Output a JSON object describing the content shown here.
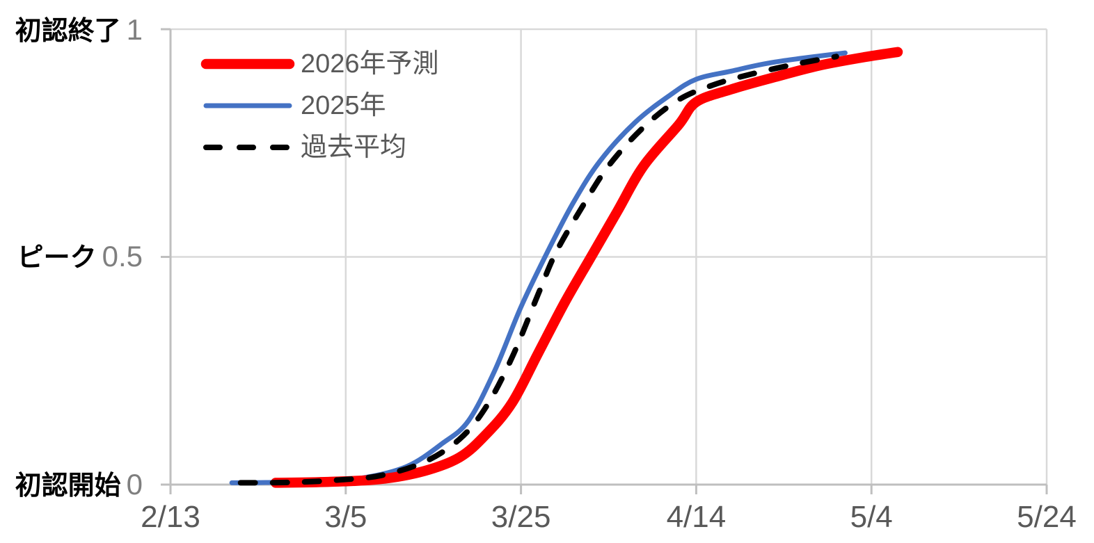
{
  "page": {
    "background": "#FFFFFF"
  },
  "chart_data": {
    "type": "line",
    "title": "",
    "xlabel": "",
    "ylabel": "",
    "x_axis": {
      "ticks": [
        "2/13",
        "3/5",
        "3/25",
        "4/14",
        "5/4",
        "5/24"
      ]
    },
    "y_axis": {
      "range": [
        0,
        1
      ],
      "rows": [
        {
          "label": "初認終了",
          "tick": "1",
          "value": 1
        },
        {
          "label": "ピーク",
          "tick": "0.5",
          "value": 0.5
        },
        {
          "label": "初認開始",
          "tick": "0",
          "value": 0
        }
      ]
    },
    "grid": {
      "vertical_at_ticks": true,
      "horizontal_at": [
        0.5,
        1
      ]
    },
    "legend_position": "top-left-inside",
    "colors": {
      "axis": "#BFBFBF",
      "gridline": "#D9D9D9",
      "tick_text": "#595959",
      "annotation_text": "#000000"
    },
    "series": [
      {
        "id": "2026-forecast",
        "name": "2026年予測",
        "color": "#FF0000",
        "style": "thick-solid",
        "points": [
          [
            "2/25",
            0.004
          ],
          [
            "3/3",
            0.006
          ],
          [
            "3/9",
            0.012
          ],
          [
            "3/14",
            0.03
          ],
          [
            "3/18",
            0.06
          ],
          [
            "3/21",
            0.11
          ],
          [
            "3/24",
            0.18
          ],
          [
            "3/27",
            0.29
          ],
          [
            "3/30",
            0.4
          ],
          [
            "4/2",
            0.5
          ],
          [
            "4/5",
            0.6
          ],
          [
            "4/8",
            0.7
          ],
          [
            "4/12",
            0.79
          ],
          [
            "4/14",
            0.84
          ],
          [
            "4/18",
            0.868
          ],
          [
            "4/23",
            0.895
          ],
          [
            "4/28",
            0.92
          ],
          [
            "5/3",
            0.938
          ],
          [
            "5/7",
            0.95
          ]
        ]
      },
      {
        "id": "2025",
        "name": "2025年",
        "color": "#4472C4",
        "style": "solid",
        "points": [
          [
            "2/20",
            0.004
          ],
          [
            "2/25",
            0.005
          ],
          [
            "3/2",
            0.008
          ],
          [
            "3/7",
            0.015
          ],
          [
            "3/12",
            0.04
          ],
          [
            "3/16",
            0.09
          ],
          [
            "3/19",
            0.14
          ],
          [
            "3/22",
            0.25
          ],
          [
            "3/25",
            0.39
          ],
          [
            "3/28",
            0.51
          ],
          [
            "3/31",
            0.62
          ],
          [
            "4/3",
            0.71
          ],
          [
            "4/7",
            0.795
          ],
          [
            "4/11",
            0.855
          ],
          [
            "4/14",
            0.89
          ],
          [
            "4/18",
            0.908
          ],
          [
            "4/23",
            0.928
          ],
          [
            "5/1",
            0.948
          ]
        ]
      },
      {
        "id": "past-average",
        "name": "過去平均",
        "color": "#000000",
        "style": "dashed",
        "points": [
          [
            "2/21",
            0.004
          ],
          [
            "2/27",
            0.005
          ],
          [
            "3/4",
            0.01
          ],
          [
            "3/9",
            0.02
          ],
          [
            "3/14",
            0.05
          ],
          [
            "3/18",
            0.1
          ],
          [
            "3/21",
            0.17
          ],
          [
            "3/24",
            0.28
          ],
          [
            "3/27",
            0.42
          ],
          [
            "3/29",
            0.51
          ],
          [
            "4/1",
            0.61
          ],
          [
            "4/4",
            0.7
          ],
          [
            "4/8",
            0.785
          ],
          [
            "4/12",
            0.845
          ],
          [
            "4/16",
            0.878
          ],
          [
            "4/20",
            0.9
          ],
          [
            "4/25",
            0.922
          ],
          [
            "4/30",
            0.94
          ]
        ]
      }
    ]
  }
}
